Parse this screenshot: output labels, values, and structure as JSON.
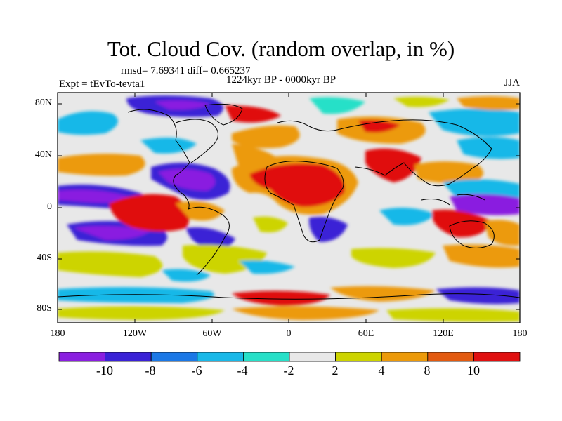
{
  "title": "Tot. Cloud Cov. (random overlap, in %)",
  "stats": "rmsd= 7.69341  diff= 0.665237",
  "period": "1224kyr BP - 0000kyr BP",
  "experiment": "Expt = tEvTo-tevta1",
  "season": "JJA",
  "lat_labels": [
    "80N",
    "40N",
    "0",
    "40S",
    "80S"
  ],
  "lon_labels": [
    "180",
    "120W",
    "60W",
    "0",
    "60E",
    "120E",
    "180"
  ],
  "colorbar": {
    "labels": [
      "-10",
      "-8",
      "-6",
      "-4",
      "-2",
      "2",
      "4",
      "8",
      "10"
    ],
    "colors": [
      "#8a1fe0",
      "#3a22d6",
      "#1b78e6",
      "#19b8e8",
      "#27e0c8",
      "#e8e8e8",
      "#cdd400",
      "#ec9a0a",
      "#e25a10",
      "#e01010"
    ]
  }
}
